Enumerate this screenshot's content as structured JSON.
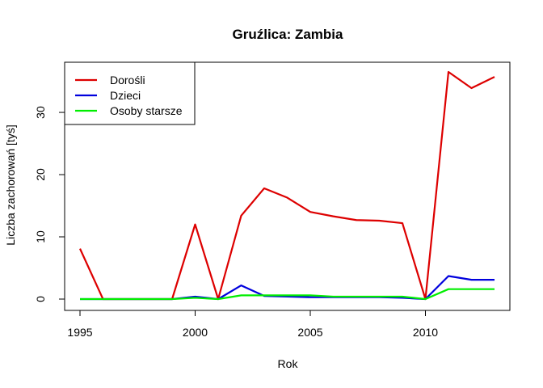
{
  "chart_data": {
    "type": "line",
    "title": "Gruźlica: Zambia",
    "xlabel": "Rok",
    "ylabel": "Liczba zachorowań [tyś]",
    "x": [
      1995,
      1996,
      1997,
      1998,
      1999,
      2000,
      2001,
      2002,
      2003,
      2004,
      2005,
      2006,
      2007,
      2008,
      2009,
      2010,
      2011,
      2012,
      2013
    ],
    "xlim": [
      1995,
      2013
    ],
    "ylim": [
      0,
      36.5
    ],
    "xticks": [
      1995,
      2000,
      2005,
      2010
    ],
    "yticks": [
      0,
      10,
      20,
      30
    ],
    "grid": false,
    "legend_position": "top-left",
    "series": [
      {
        "name": "Dorośli",
        "color": "#dd0000",
        "values": [
          8.1,
          0,
          0,
          0,
          0,
          12.0,
          0,
          13.4,
          17.8,
          16.3,
          14.0,
          13.3,
          12.7,
          12.6,
          12.2,
          0,
          36.5,
          33.9,
          35.7
        ]
      },
      {
        "name": "Dzieci",
        "color": "#0000dd",
        "values": [
          0,
          0,
          0,
          0,
          0,
          0.4,
          0,
          2.2,
          0.5,
          0.4,
          0.3,
          0.3,
          0.3,
          0.3,
          0.2,
          0,
          3.7,
          3.1,
          3.1
        ]
      },
      {
        "name": "Osoby starsze",
        "color": "#00ee00",
        "values": [
          0,
          0,
          0,
          0,
          0,
          0.2,
          0,
          0.6,
          0.6,
          0.6,
          0.6,
          0.4,
          0.4,
          0.4,
          0.4,
          0,
          1.6,
          1.6,
          1.6
        ]
      }
    ]
  }
}
